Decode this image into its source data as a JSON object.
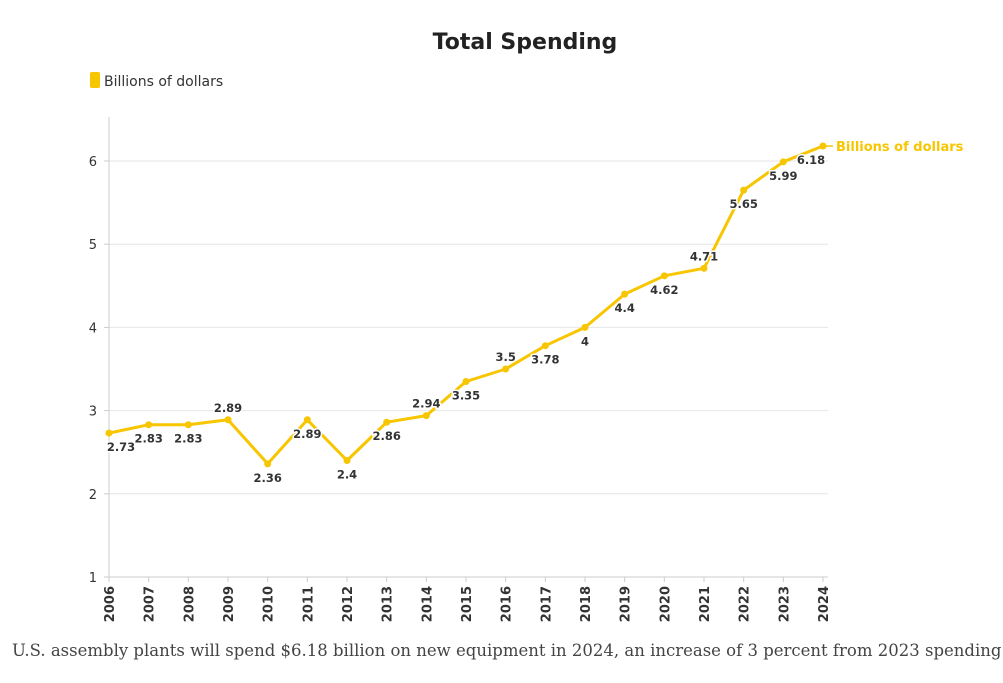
{
  "chart_data": {
    "type": "line",
    "title": "Total Spending",
    "x": [
      "2006",
      "2007",
      "2008",
      "2009",
      "2010",
      "2011",
      "2012",
      "2013",
      "2014",
      "2015",
      "2016",
      "2017",
      "2018",
      "2019",
      "2020",
      "2021",
      "2022",
      "2023",
      "2024"
    ],
    "series": [
      {
        "name": "Billions of dollars",
        "values": [
          2.73,
          2.83,
          2.83,
          2.89,
          2.36,
          2.89,
          2.4,
          2.86,
          2.94,
          3.35,
          3.5,
          3.78,
          4,
          4.4,
          4.62,
          4.71,
          5.65,
          5.99,
          6.18
        ],
        "labels": [
          "2.73",
          "2.83",
          "2.83",
          "2.89",
          "2.36",
          "2.89",
          "2.4",
          "2.86",
          "2.94",
          "3.35",
          "3.5",
          "3.78",
          "4",
          "4.4",
          "4.62",
          "4.71",
          "5.65",
          "5.99",
          "6.18"
        ]
      }
    ],
    "yticks": [
      "1",
      "2",
      "3",
      "4",
      "5",
      "6"
    ],
    "ylim": [
      1,
      6.5
    ],
    "xlabel": "",
    "ylabel": "",
    "grid": true,
    "legend": "top-left",
    "colors": {
      "series": "#F7C600",
      "grid": "#e6e6e6",
      "axis": "#cccccc"
    }
  },
  "caption": "U.S. assembly plants will spend $6.18 billion on new equipment in 2024, an increase of 3 percent from 2023 spending."
}
